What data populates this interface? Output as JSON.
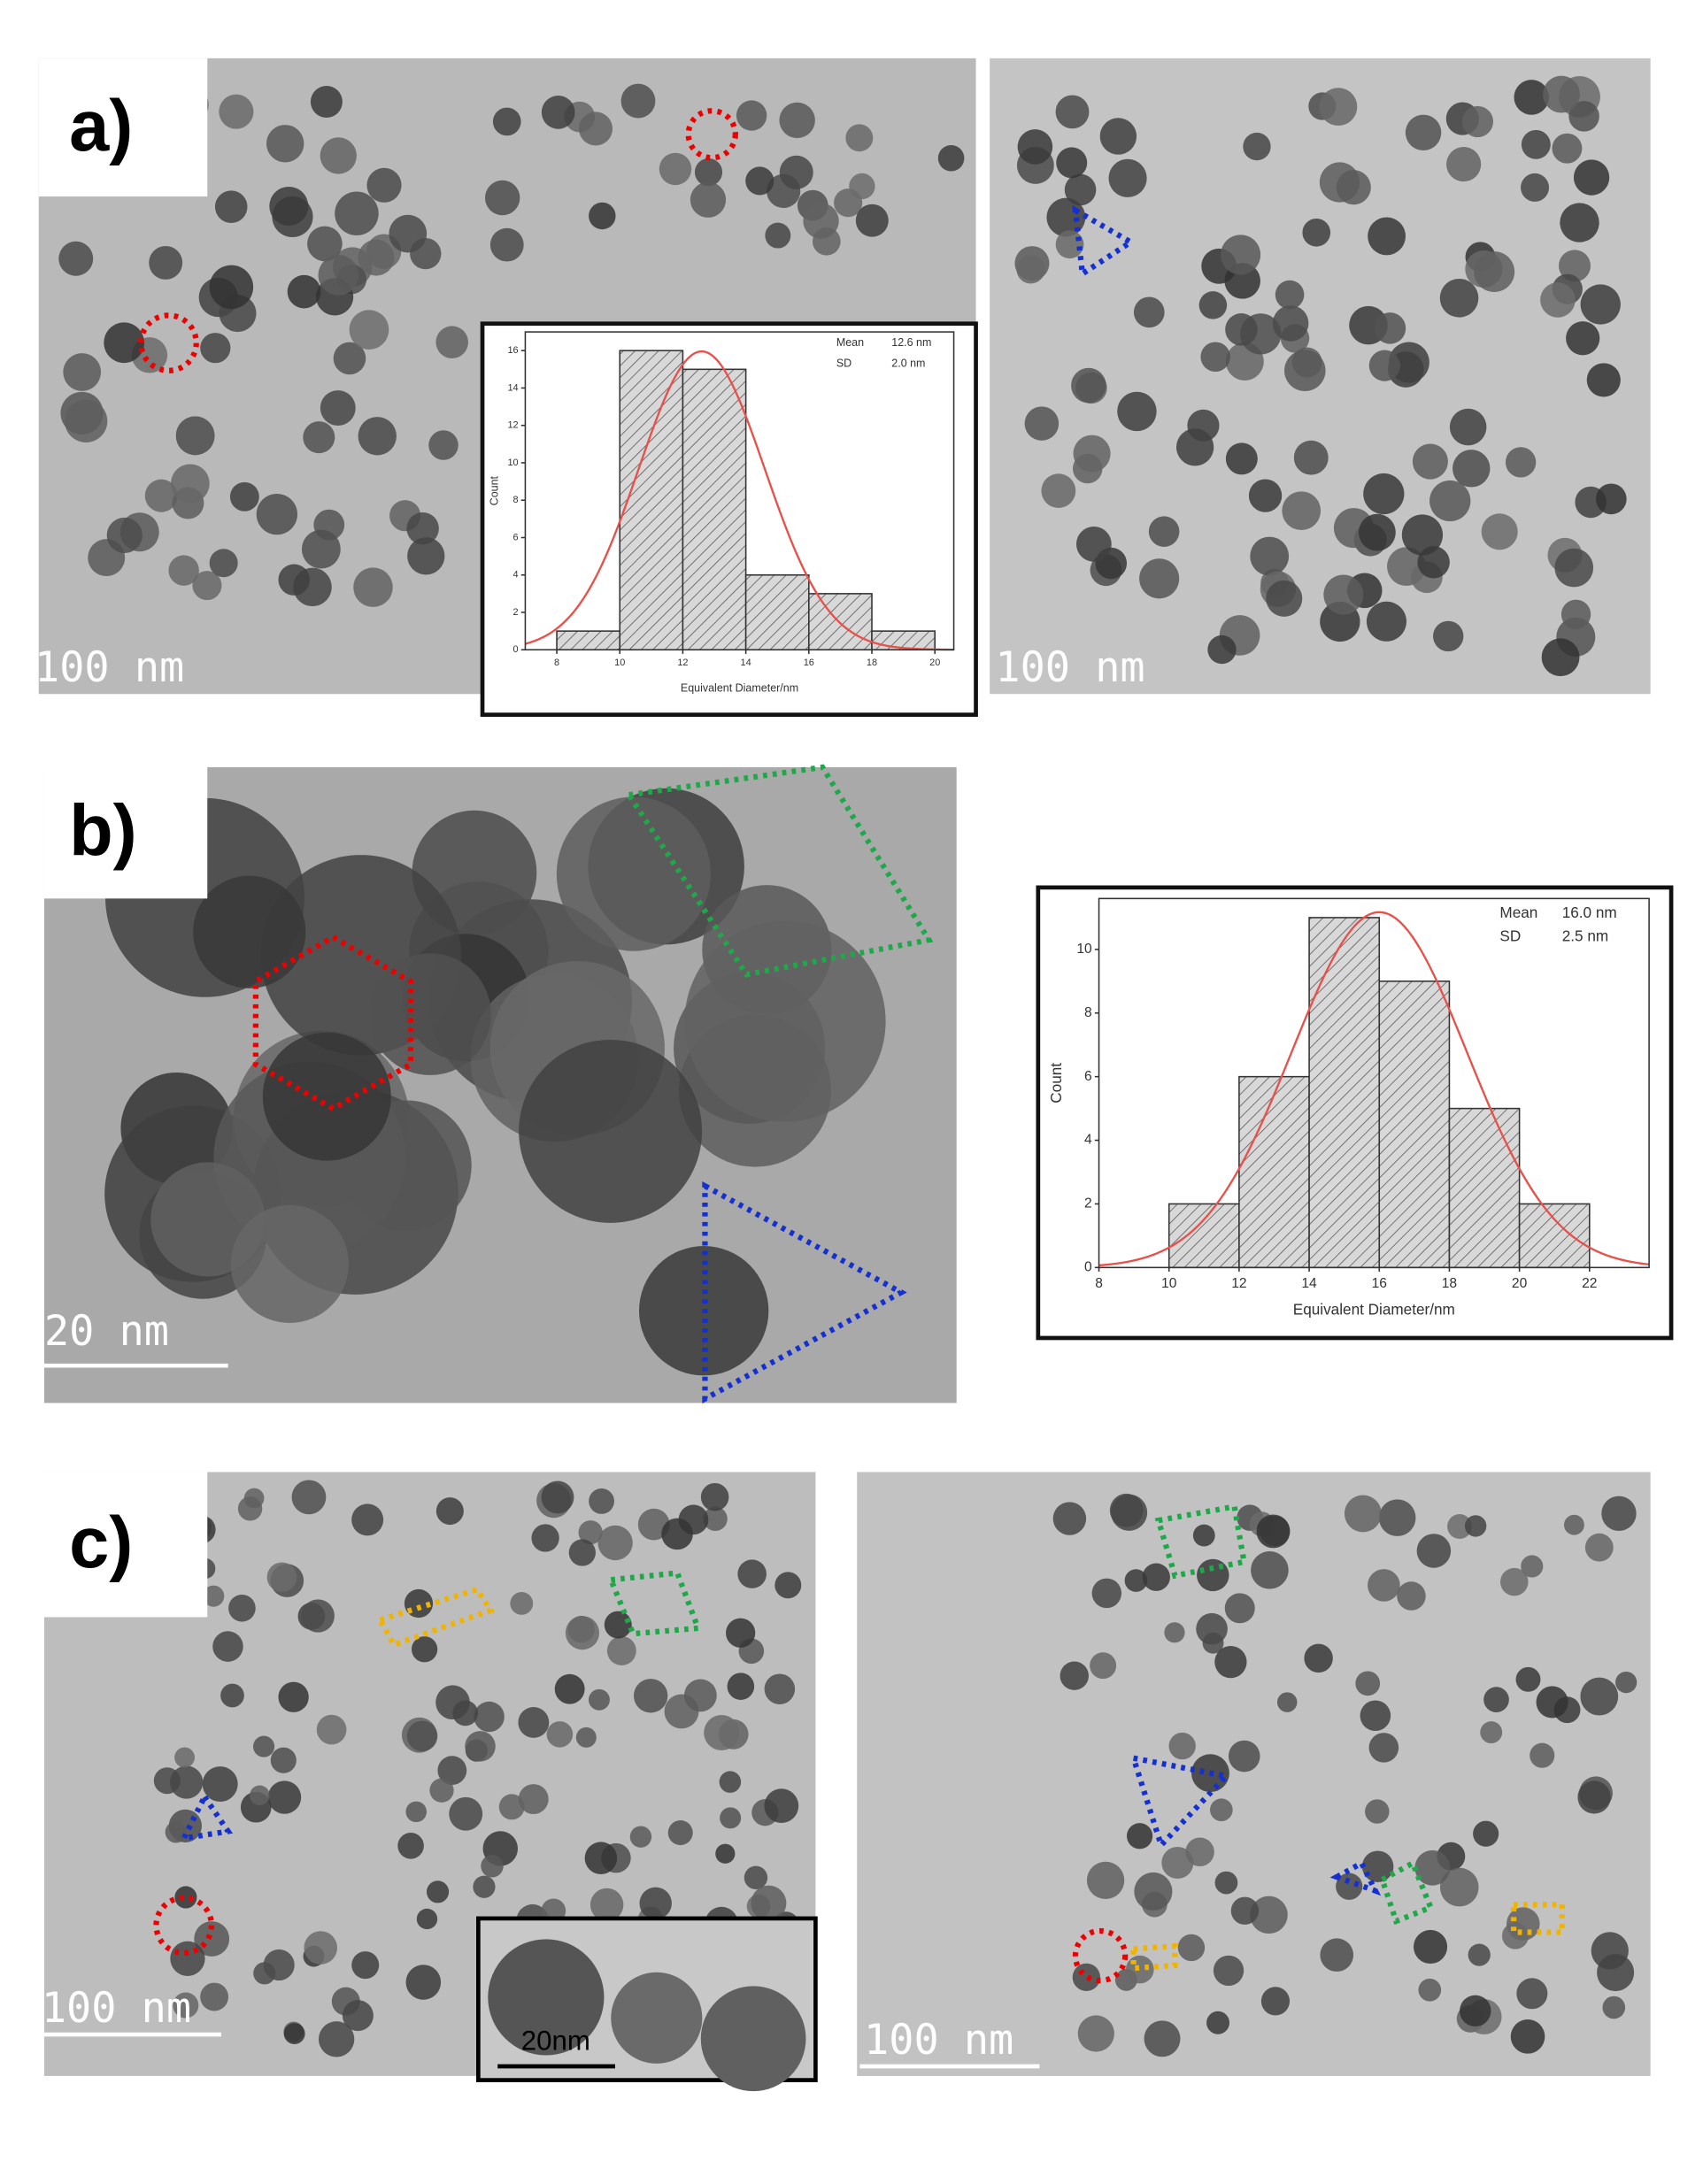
{
  "panels": [
    {
      "label": "a)",
      "scale_bars": [
        "100 nm",
        "100 nm"
      ]
    },
    {
      "label": "b)",
      "scale_bars": [
        "20 nm"
      ]
    },
    {
      "label": "c)",
      "scale_bars": [
        "100 nm",
        "100 nm"
      ],
      "inset_scale_bar": "20nm"
    }
  ],
  "chart_data": [
    {
      "type": "histogram",
      "xlabel": "Equivalent Diameter/nm",
      "ylabel": "Count",
      "bins": [
        8,
        10,
        12,
        14,
        16,
        18,
        20
      ],
      "values": [
        1,
        16,
        15,
        4,
        3,
        1
      ],
      "xlim": [
        7,
        20.6
      ],
      "ylim": [
        0,
        17
      ],
      "xticks": [
        8,
        10,
        12,
        14,
        16,
        18,
        20
      ],
      "yticks": [
        0,
        2,
        4,
        6,
        8,
        10,
        12,
        14,
        16
      ],
      "color": "#d8d8d8",
      "fit_color": "#e8504a",
      "fit": {
        "mean": {
          "name": "Mean",
          "value": 12.6,
          "label": "12.6 nm"
        },
        "sd": {
          "name": "SD",
          "value": 2.0,
          "label": "2.0 nm"
        }
      }
    },
    {
      "type": "histogram",
      "xlabel": "Equivalent Diameter/nm",
      "ylabel": "Count",
      "bins": [
        10,
        12,
        14,
        16,
        18,
        20,
        22
      ],
      "values": [
        2,
        6,
        11,
        9,
        5,
        2
      ],
      "xlim": [
        8,
        23.7
      ],
      "ylim": [
        0,
        11.6
      ],
      "xticks": [
        8,
        10,
        12,
        14,
        16,
        18,
        20,
        22
      ],
      "yticks": [
        0,
        2,
        4,
        6,
        8,
        10
      ],
      "color": "#d8d8d8",
      "fit_color": "#e8504a",
      "fit": {
        "mean": {
          "name": "Mean",
          "value": 16.0,
          "label": "16.0 nm"
        },
        "sd": {
          "name": "SD",
          "value": 2.5,
          "label": "2.5 nm"
        }
      }
    }
  ]
}
